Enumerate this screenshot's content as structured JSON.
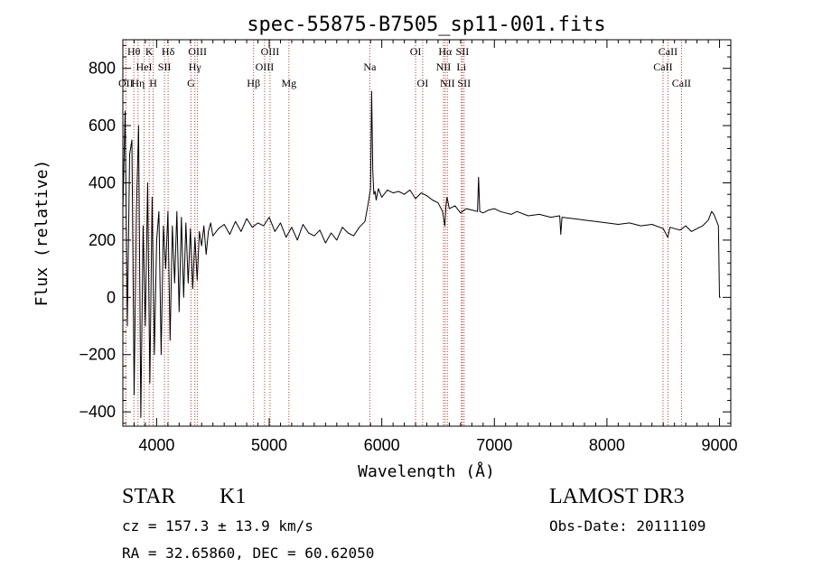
{
  "chart_data": {
    "type": "line",
    "title": "spec-55875-B7505_sp11-001.fits",
    "xlabel": "Wavelength (Å)",
    "ylabel": "Flux (relative)",
    "xlim": [
      3700,
      9100
    ],
    "ylim": [
      -450,
      900
    ],
    "x_ticks": [
      4000,
      5000,
      6000,
      7000,
      8000,
      9000
    ],
    "x_tick_labels": [
      "4000",
      "5000",
      "6000",
      "7000",
      "8000",
      "9000"
    ],
    "y_ticks": [
      -400,
      -200,
      0,
      200,
      400,
      600,
      800
    ],
    "y_tick_labels": [
      "−400",
      "−200",
      "0",
      "200",
      "400",
      "600",
      "800"
    ],
    "spectral_lines": [
      {
        "label": "OII",
        "wavelength": 3727,
        "row": 3
      },
      {
        "label": "Hθ",
        "wavelength": 3798,
        "row": 1
      },
      {
        "label": "Hη",
        "wavelength": 3835,
        "row": 3
      },
      {
        "label": "HeI",
        "wavelength": 3889,
        "row": 2
      },
      {
        "label": "K",
        "wavelength": 3934,
        "row": 1
      },
      {
        "label": "H",
        "wavelength": 3969,
        "row": 3
      },
      {
        "label": "SII",
        "wavelength": 4070,
        "row": 2
      },
      {
        "label": "Hδ",
        "wavelength": 4102,
        "row": 1
      },
      {
        "label": "G",
        "wavelength": 4305,
        "row": 3
      },
      {
        "label": "Hγ",
        "wavelength": 4340,
        "row": 2
      },
      {
        "label": "OIII",
        "wavelength": 4363,
        "row": 1
      },
      {
        "label": "Hβ",
        "wavelength": 4861,
        "row": 3
      },
      {
        "label": "OIII",
        "wavelength": 4959,
        "row": 2
      },
      {
        "label": "OIII",
        "wavelength": 5007,
        "row": 1
      },
      {
        "label": "Mg",
        "wavelength": 5175,
        "row": 3
      },
      {
        "label": "Na",
        "wavelength": 5894,
        "row": 2
      },
      {
        "label": "OI",
        "wavelength": 6300,
        "row": 1
      },
      {
        "label": "OI",
        "wavelength": 6363,
        "row": 3
      },
      {
        "label": "NII",
        "wavelength": 6548,
        "row": 2
      },
      {
        "label": "Hα",
        "wavelength": 6563,
        "row": 1
      },
      {
        "label": "NII",
        "wavelength": 6583,
        "row": 3
      },
      {
        "label": "Li",
        "wavelength": 6707,
        "row": 2
      },
      {
        "label": "SII",
        "wavelength": 6716,
        "row": 1
      },
      {
        "label": "SII",
        "wavelength": 6731,
        "row": 3
      },
      {
        "label": "CaII",
        "wavelength": 8498,
        "row": 2
      },
      {
        "label": "CaII",
        "wavelength": 8542,
        "row": 1
      },
      {
        "label": "CaII",
        "wavelength": 8662,
        "row": 3
      }
    ],
    "series": [
      {
        "name": "flux",
        "x": [
          3700,
          3720,
          3740,
          3760,
          3780,
          3800,
          3820,
          3840,
          3860,
          3880,
          3900,
          3920,
          3940,
          3960,
          3980,
          4000,
          4020,
          4040,
          4060,
          4080,
          4100,
          4120,
          4140,
          4160,
          4180,
          4200,
          4220,
          4240,
          4260,
          4280,
          4300,
          4320,
          4340,
          4360,
          4380,
          4400,
          4420,
          4440,
          4460,
          4480,
          4500,
          4550,
          4600,
          4650,
          4700,
          4750,
          4800,
          4850,
          4900,
          4950,
          5000,
          5050,
          5100,
          5150,
          5200,
          5250,
          5300,
          5350,
          5400,
          5450,
          5500,
          5550,
          5600,
          5650,
          5700,
          5750,
          5800,
          5850,
          5880,
          5900,
          5910,
          5920,
          5930,
          5940,
          5950,
          5970,
          6000,
          6050,
          6100,
          6150,
          6200,
          6250,
          6300,
          6350,
          6400,
          6450,
          6500,
          6540,
          6560,
          6570,
          6580,
          6600,
          6650,
          6700,
          6750,
          6800,
          6850,
          6860,
          6870,
          6900,
          6950,
          7000,
          7050,
          7100,
          7150,
          7200,
          7300,
          7400,
          7500,
          7580,
          7590,
          7600,
          7700,
          7800,
          7900,
          8000,
          8100,
          8200,
          8300,
          8400,
          8500,
          8540,
          8560,
          8600,
          8650,
          8700,
          8750,
          8800,
          8850,
          8900,
          8930,
          8950,
          8970,
          8990,
          9000,
          9010
        ],
        "y": [
          300,
          650,
          -100,
          500,
          550,
          -340,
          300,
          600,
          -420,
          250,
          -100,
          400,
          -300,
          350,
          -200,
          200,
          300,
          -200,
          250,
          100,
          300,
          -150,
          250,
          50,
          300,
          -50,
          280,
          0,
          260,
          50,
          240,
          30,
          210,
          60,
          230,
          180,
          250,
          150,
          230,
          260,
          215,
          240,
          255,
          220,
          265,
          230,
          275,
          245,
          260,
          250,
          280,
          230,
          260,
          210,
          245,
          200,
          255,
          225,
          215,
          235,
          190,
          225,
          200,
          245,
          225,
          215,
          245,
          265,
          330,
          380,
          720,
          440,
          360,
          370,
          340,
          380,
          350,
          375,
          365,
          370,
          360,
          375,
          345,
          365,
          355,
          340,
          330,
          300,
          250,
          320,
          350,
          310,
          320,
          295,
          310,
          305,
          300,
          420,
          300,
          295,
          305,
          310,
          300,
          295,
          290,
          300,
          285,
          290,
          280,
          285,
          220,
          280,
          275,
          270,
          265,
          260,
          255,
          260,
          250,
          255,
          240,
          210,
          245,
          240,
          235,
          250,
          230,
          240,
          250,
          270,
          300,
          290,
          270,
          250,
          0,
          0
        ]
      }
    ]
  },
  "info": {
    "object_class": "STAR",
    "subclass": "K1",
    "survey": "LAMOST DR3",
    "cz": "cz = 157.3 ± 13.9 km/s",
    "obs_date": "Obs-Date: 20111109",
    "ra_dec": "RA =  32.65860, DEC =  60.62050"
  }
}
